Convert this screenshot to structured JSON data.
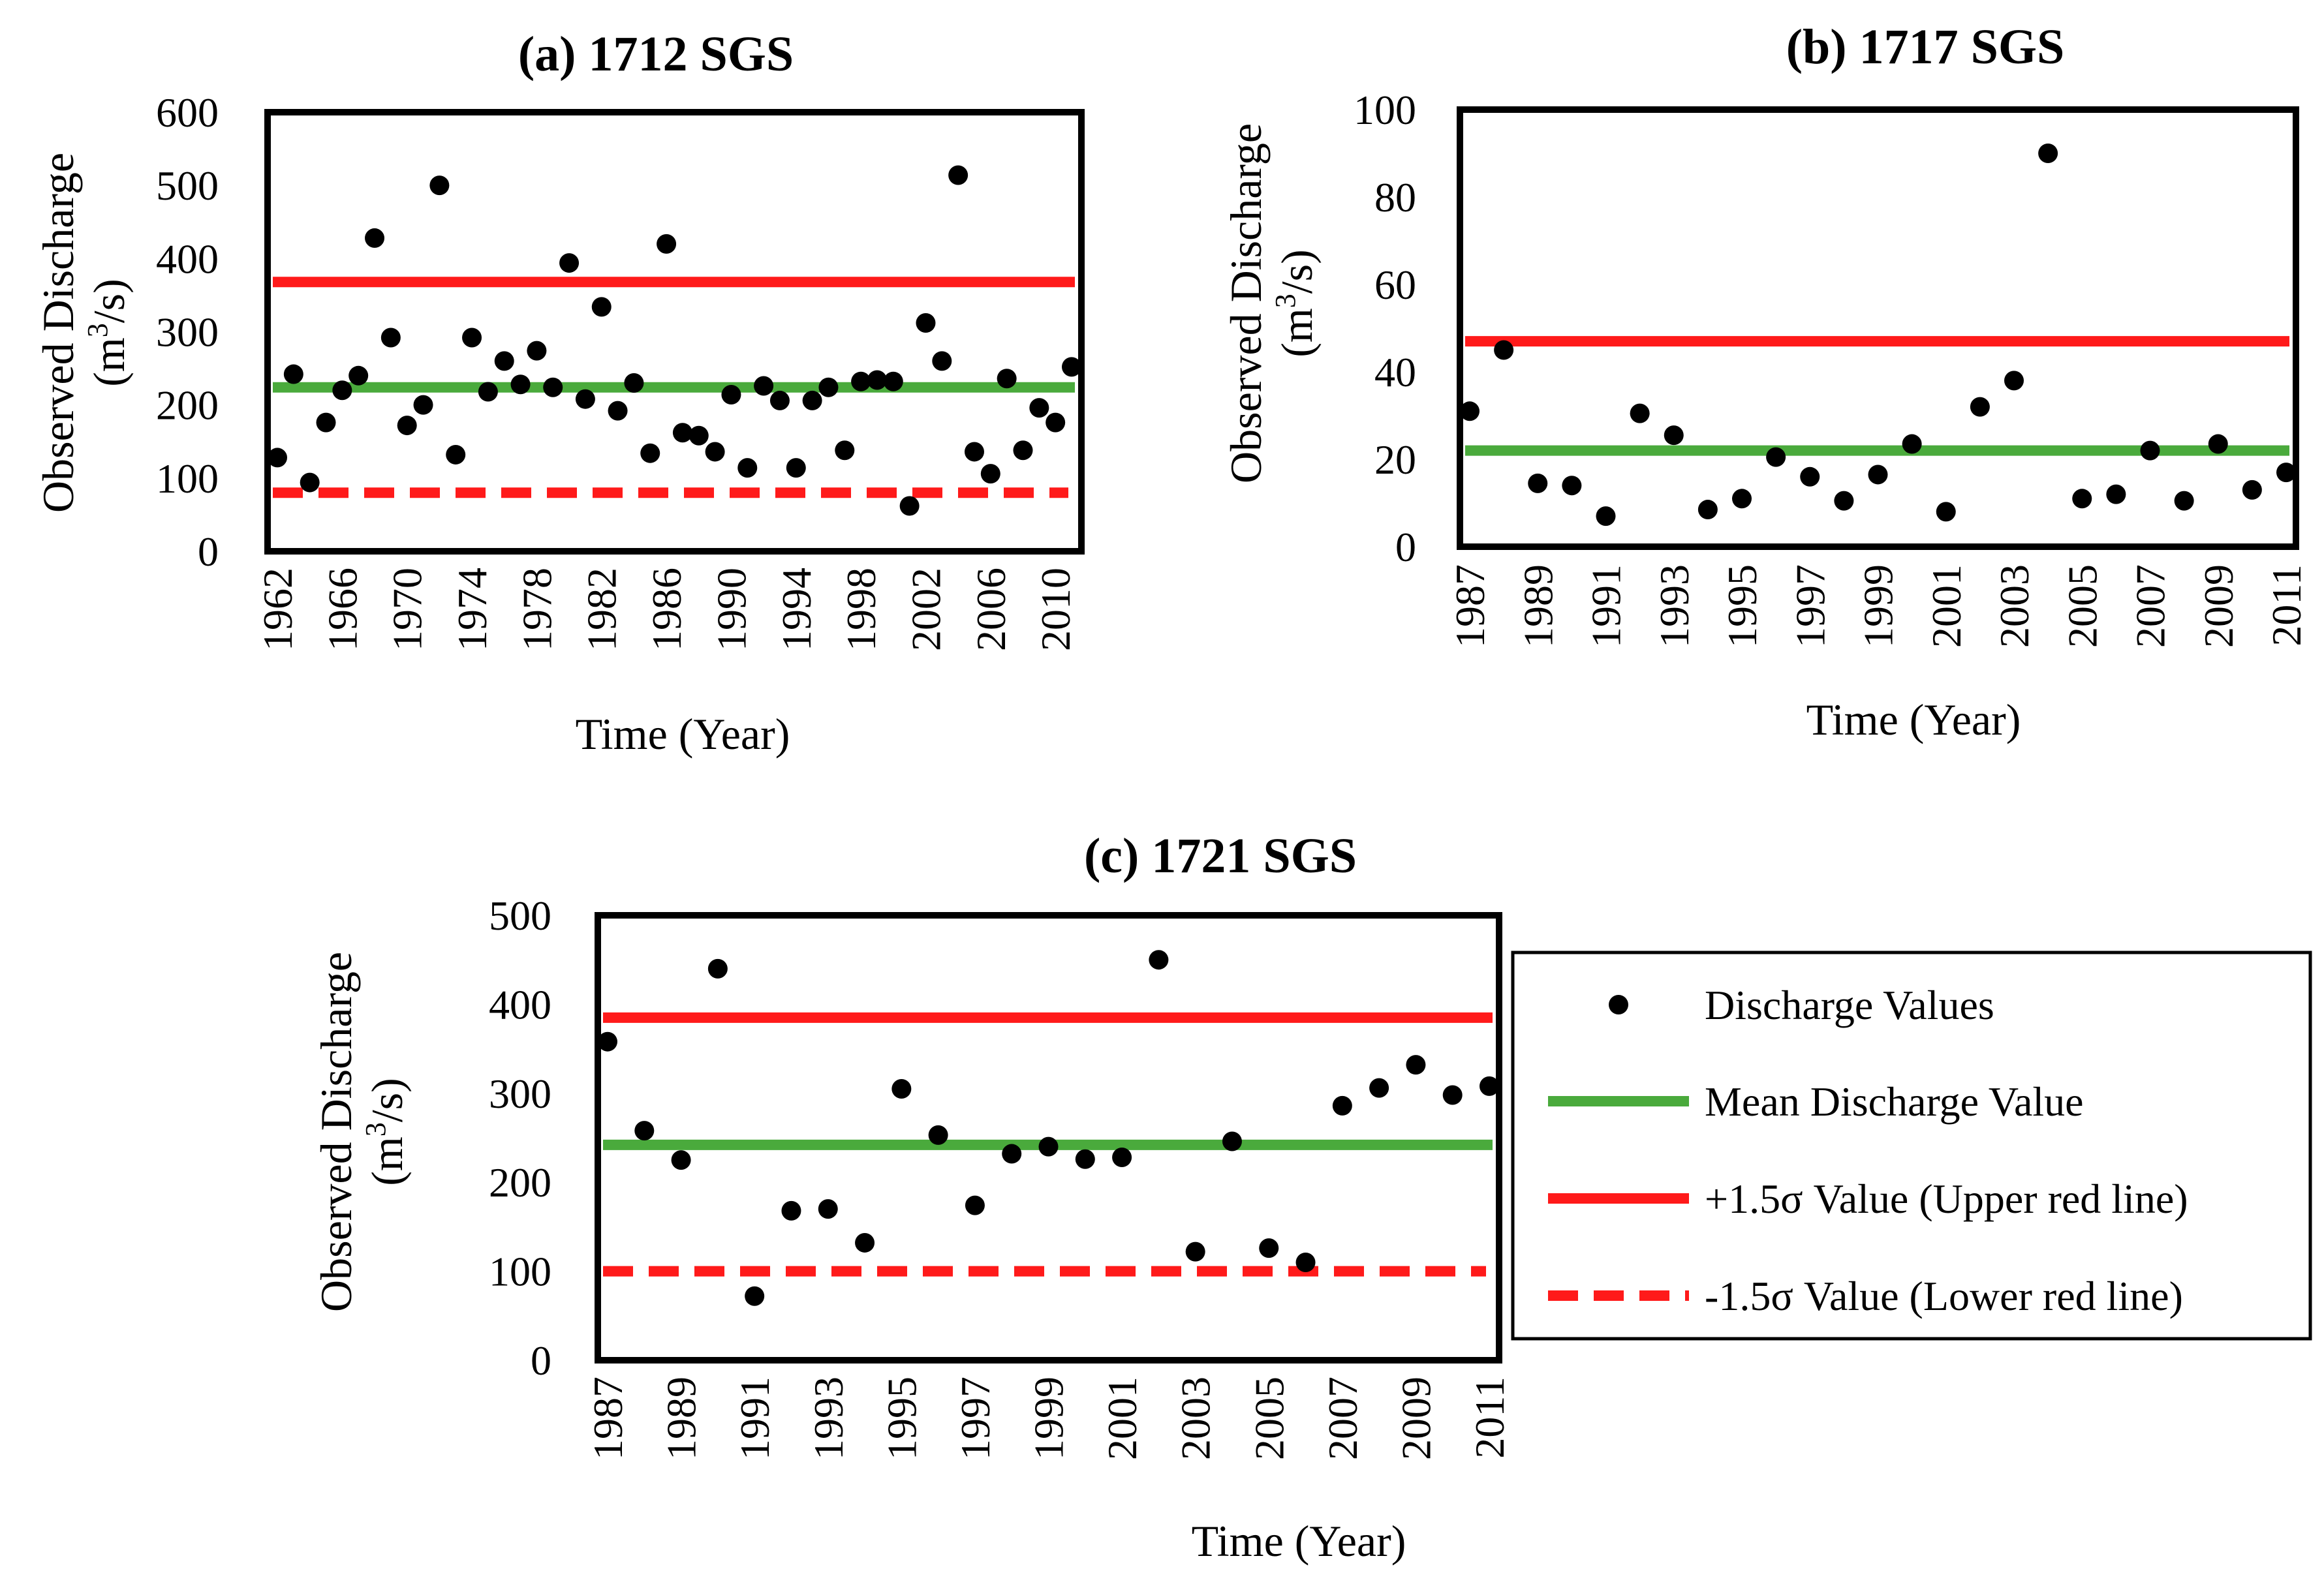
{
  "colors": {
    "mean": "#4aaa3c",
    "upper": "#ff1a1a",
    "lower": "#ff1a1a",
    "points": "#000000",
    "frame": "#000000"
  },
  "legend": {
    "items": [
      {
        "label": "Discharge Values",
        "kind": "point"
      },
      {
        "label": "Mean Discharge Value",
        "kind": "mean"
      },
      {
        "label": "+1.5σ Value (Upper red line)",
        "kind": "upper"
      },
      {
        "label": "-1.5σ Value (Lower red line)",
        "kind": "lower"
      }
    ]
  },
  "chart_data": [
    {
      "type": "scatter",
      "title": "(a) 1712 SGS",
      "ylabel_line1": "Observed Discharge",
      "ylabel_line2_pre": "(m",
      "ylabel_line2_sup": "3",
      "ylabel_line2_post": "/s)",
      "xlabel": "Time (Year)",
      "xlim": [
        1962,
        2011
      ],
      "ylim": [
        0,
        600
      ],
      "yticks": [
        0,
        100,
        200,
        300,
        400,
        500,
        600
      ],
      "xticks": [
        1962,
        1966,
        1970,
        1974,
        1978,
        1982,
        1986,
        1990,
        1994,
        1998,
        2002,
        2006,
        2010
      ],
      "mean": 224,
      "upper": 368,
      "lower": 80,
      "x": [
        1962,
        1963,
        1964,
        1965,
        1966,
        1967,
        1968,
        1969,
        1970,
        1971,
        1972,
        1973,
        1974,
        1975,
        1976,
        1977,
        1978,
        1979,
        1980,
        1981,
        1982,
        1983,
        1984,
        1985,
        1986,
        1987,
        1988,
        1989,
        1990,
        1991,
        1992,
        1993,
        1994,
        1995,
        1996,
        1997,
        1998,
        1999,
        2000,
        2001,
        2002,
        2003,
        2004,
        2005,
        2006,
        2007,
        2008,
        2009,
        2010,
        2011
      ],
      "y": [
        128,
        242,
        94,
        176,
        220,
        240,
        428,
        292,
        172,
        200,
        500,
        132,
        292,
        218,
        260,
        228,
        274,
        224,
        394,
        208,
        334,
        192,
        230,
        134,
        420,
        162,
        158,
        136,
        214,
        114,
        226,
        206,
        114,
        206,
        224,
        138,
        232,
        234,
        232,
        62,
        312,
        260,
        514,
        136,
        106,
        236,
        138,
        196,
        176,
        252
      ]
    },
    {
      "type": "scatter",
      "title": "(b) 1717 SGS",
      "ylabel_line1": "Observed Discharge",
      "ylabel_line2_pre": "(m",
      "ylabel_line2_sup": "3",
      "ylabel_line2_post": "/s)",
      "xlabel": "Time (Year)",
      "xlim": [
        1987,
        2011
      ],
      "ylim": [
        0,
        100
      ],
      "yticks": [
        0,
        20,
        40,
        60,
        80,
        100
      ],
      "xticks": [
        1987,
        1989,
        1991,
        1993,
        1995,
        1997,
        1999,
        2001,
        2003,
        2005,
        2007,
        2009,
        2011
      ],
      "mean": 22,
      "upper": 47,
      "lower": null,
      "x": [
        1987,
        1988,
        1989,
        1990,
        1991,
        1992,
        1993,
        1994,
        1995,
        1996,
        1997,
        1998,
        1999,
        2000,
        2001,
        2002,
        2003,
        2004,
        2005,
        2006,
        2007,
        2008,
        2009,
        2010,
        2011
      ],
      "y": [
        31,
        45,
        14.5,
        14,
        7,
        30.5,
        25.5,
        8.5,
        11,
        20.5,
        16,
        10.5,
        16.5,
        23.5,
        8,
        32,
        38,
        90,
        11,
        12,
        22,
        10.5,
        23.5,
        13,
        17
      ]
    },
    {
      "type": "scatter",
      "title": "(c) 1721 SGS",
      "ylabel_line1": "Observed Discharge",
      "ylabel_line2_pre": "(m",
      "ylabel_line2_sup": "3",
      "ylabel_line2_post": "/s)",
      "xlabel": "Time (Year)",
      "xlim": [
        1987,
        2011
      ],
      "ylim": [
        0,
        500
      ],
      "yticks": [
        0,
        100,
        200,
        300,
        400,
        500
      ],
      "xticks": [
        1987,
        1989,
        1991,
        1993,
        1995,
        1997,
        1999,
        2001,
        2003,
        2005,
        2007,
        2009,
        2011
      ],
      "mean": 242,
      "upper": 385,
      "lower": 100,
      "x": [
        1987,
        1988,
        1989,
        1990,
        1991,
        1992,
        1993,
        1994,
        1995,
        1996,
        1997,
        1998,
        1999,
        2000,
        2001,
        2002,
        2003,
        2004,
        2005,
        2006,
        2007,
        2008,
        2009,
        2010,
        2011
      ],
      "y": [
        358,
        258,
        225,
        440,
        72,
        168,
        170,
        132,
        305,
        253,
        174,
        232,
        240,
        226,
        228,
        450,
        122,
        246,
        126,
        110,
        286,
        306,
        332,
        298,
        308
      ]
    }
  ]
}
